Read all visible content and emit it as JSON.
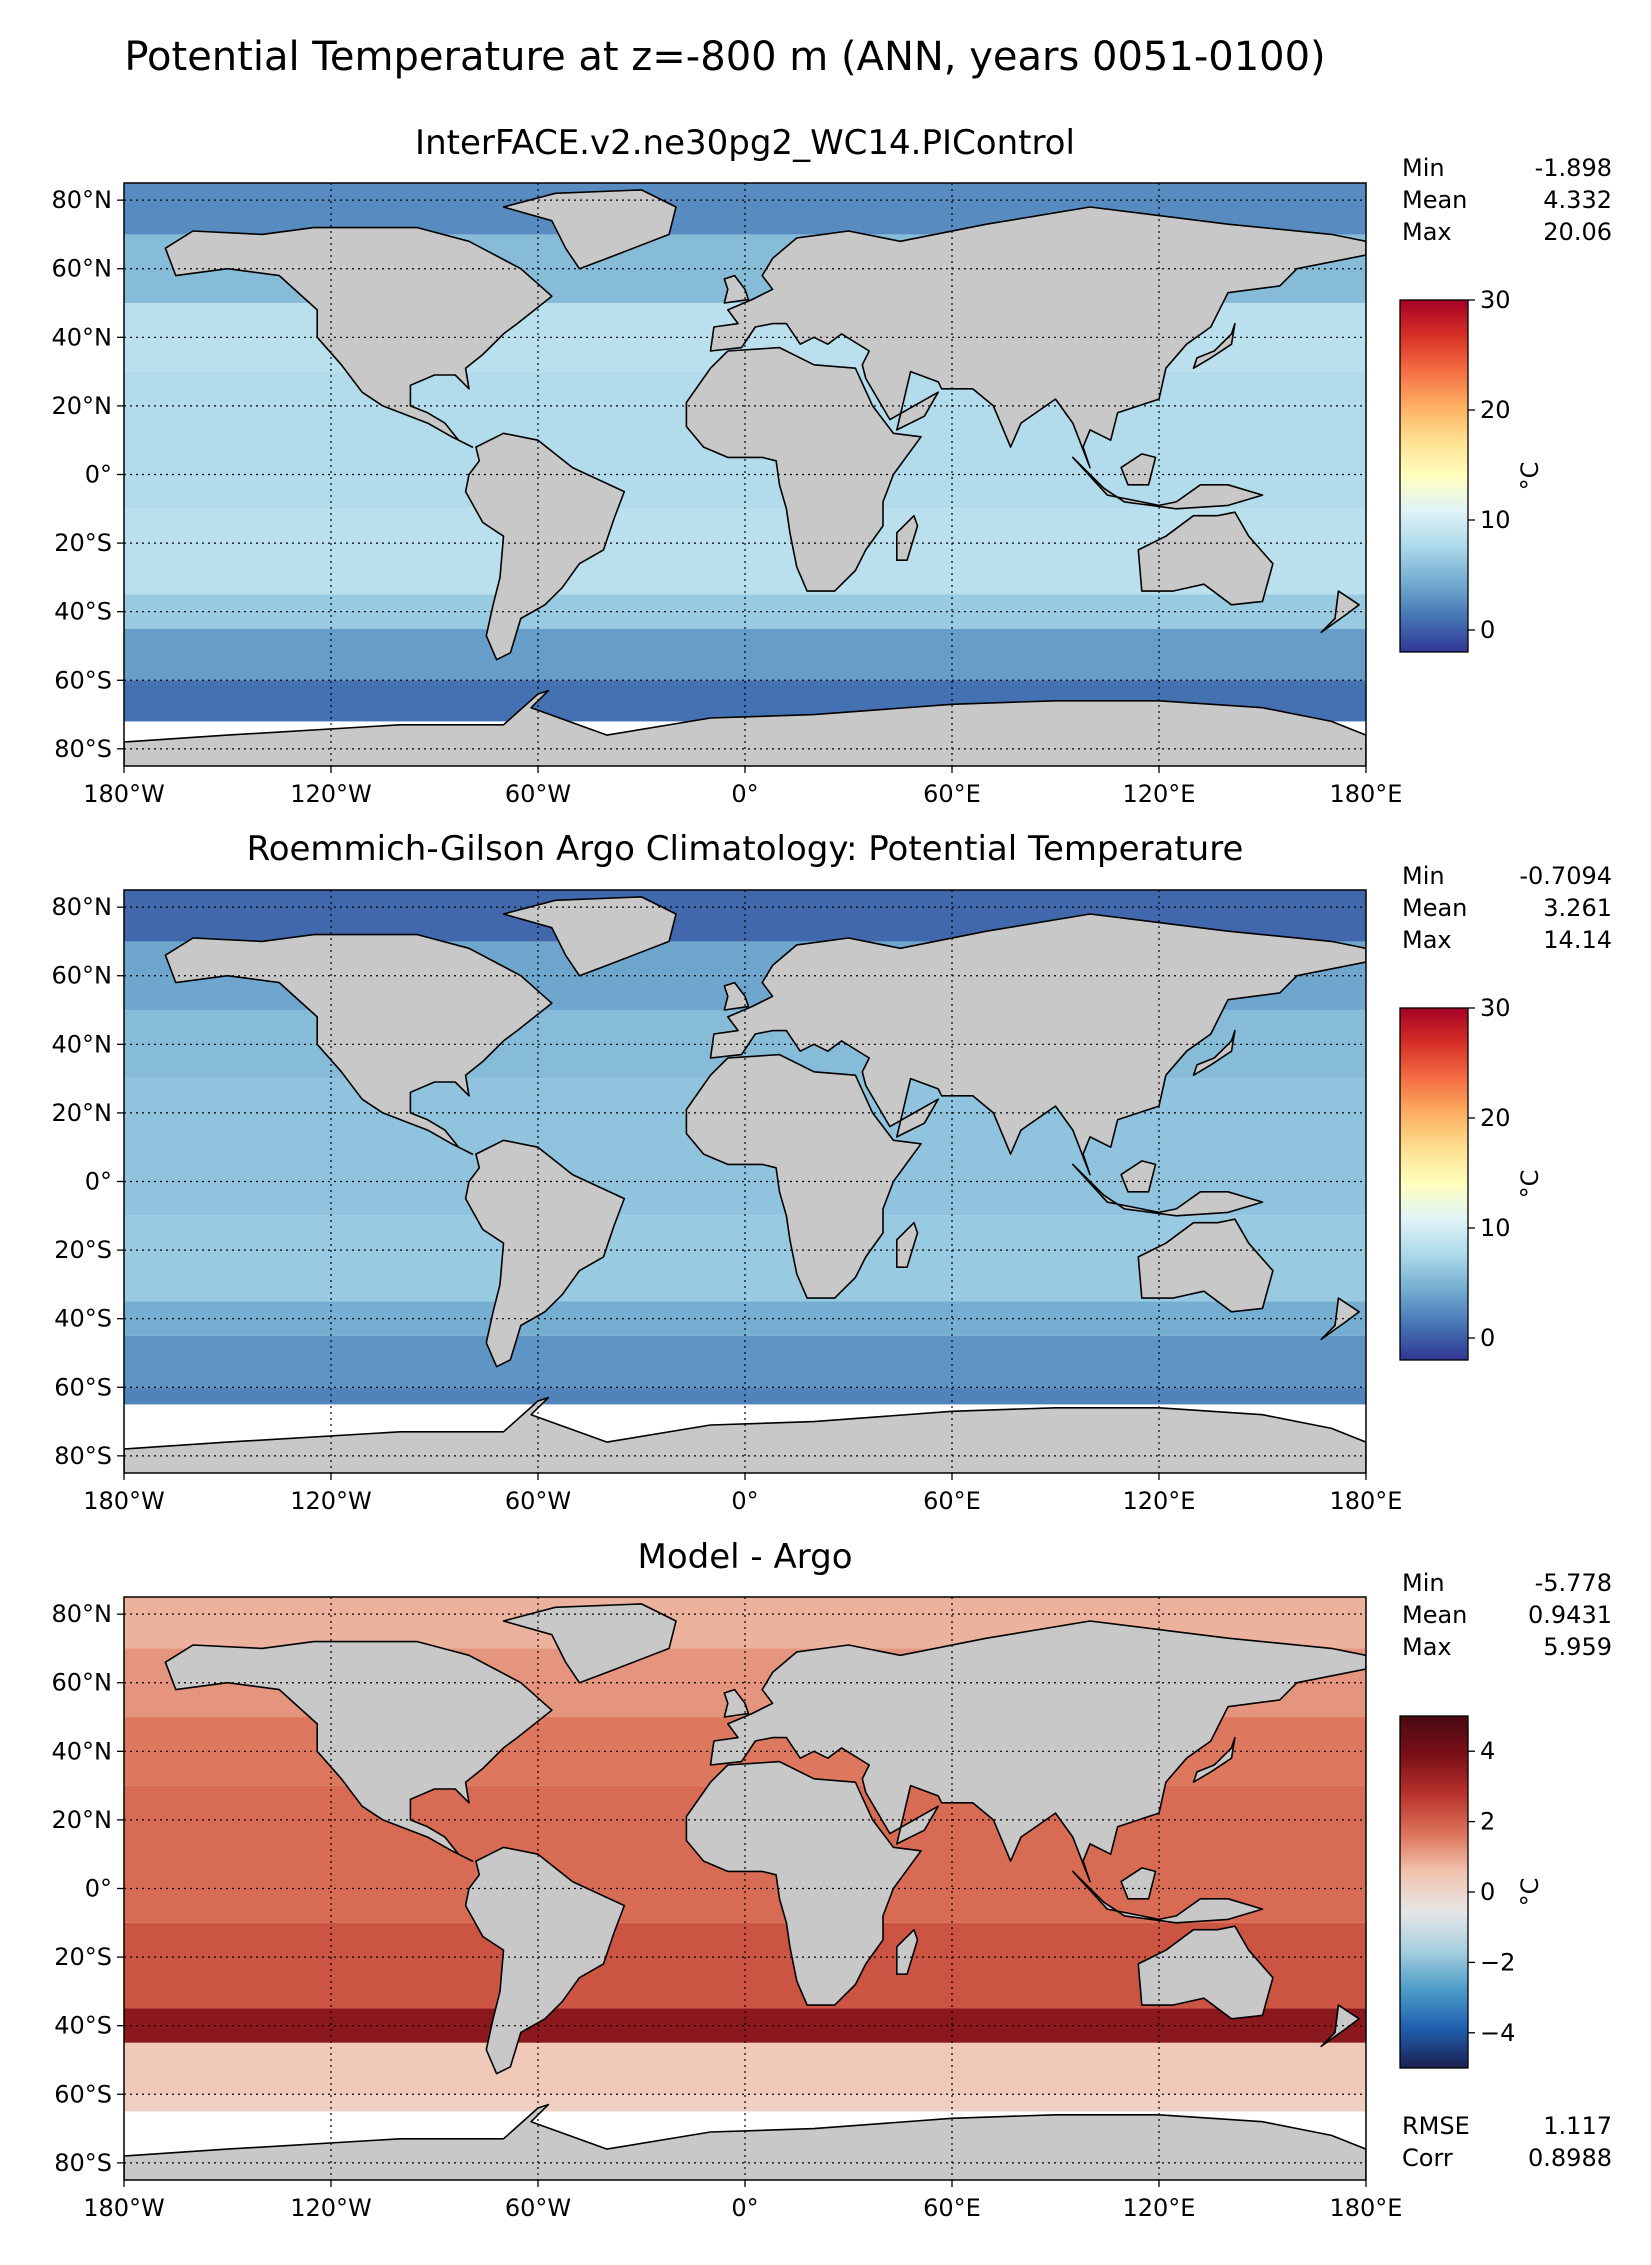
{
  "figure": {
    "suptitle": "Potential Temperature at z=-800 m (ANN, years 0051-0100)"
  },
  "colors": {
    "land": "#c8c8c8",
    "nodata": "#ffffff",
    "coast": "#000000",
    "temp_scale": [
      "#313695",
      "#4575b4",
      "#74add1",
      "#abd9e9",
      "#e0f3f8",
      "#ffffbf",
      "#fee090",
      "#fdae61",
      "#f46d43",
      "#d73027",
      "#a50026"
    ],
    "diff_scale": [
      "#1b1f50",
      "#1f5fae",
      "#4b9bc8",
      "#a7cfe0",
      "#e6e6e6",
      "#f2c4b0",
      "#dc7359",
      "#b8322c",
      "#7a0f18",
      "#4a0a12"
    ]
  },
  "chart_data": [
    {
      "type": "heatmap",
      "title": "InterFACE.v2.ne30pg2_WC14.PIControl",
      "stats": {
        "min_label": "Min",
        "min": "-1.898",
        "mean_label": "Mean",
        "mean": "4.332",
        "max_label": "Max",
        "max": "20.06"
      },
      "colorbar": {
        "label": "°C",
        "ticks": [
          "0",
          "10",
          "20",
          "30"
        ],
        "range": [
          -2,
          30
        ],
        "scale": "temp"
      },
      "xticks": [
        "180°W",
        "120°W",
        "60°W",
        "0°",
        "60°E",
        "120°E",
        "180°E"
      ],
      "yticks": [
        "80°N",
        "60°N",
        "40°N",
        "20°N",
        "0°",
        "20°S",
        "40°S",
        "60°S",
        "80°S"
      ],
      "xlim": [
        -180,
        180
      ],
      "ylim": [
        -85,
        85
      ],
      "grid": true,
      "ocean_bands": [
        {
          "lat_top": 85,
          "lat_bottom": 70,
          "value": 2.5
        },
        {
          "lat_top": 70,
          "lat_bottom": 50,
          "value": 5.5
        },
        {
          "lat_top": 50,
          "lat_bottom": 30,
          "value": 8.5
        },
        {
          "lat_top": 30,
          "lat_bottom": -10,
          "value": 8.0
        },
        {
          "lat_top": -10,
          "lat_bottom": -35,
          "value": 8.5
        },
        {
          "lat_top": -35,
          "lat_bottom": -45,
          "value": 6.5
        },
        {
          "lat_top": -45,
          "lat_bottom": -60,
          "value": 3.5
        },
        {
          "lat_top": -60,
          "lat_bottom": -72,
          "value": 1.0
        }
      ]
    },
    {
      "type": "heatmap",
      "title": "Roemmich-Gilson Argo Climatology: Potential Temperature",
      "stats": {
        "min_label": "Min",
        "min": "-0.7094",
        "mean_label": "Mean",
        "mean": "3.261",
        "max_label": "Max",
        "max": "14.14"
      },
      "colorbar": {
        "label": "°C",
        "ticks": [
          "0",
          "10",
          "20",
          "30"
        ],
        "range": [
          -2,
          30
        ],
        "scale": "temp"
      },
      "xticks": [
        "180°W",
        "120°W",
        "60°W",
        "0°",
        "60°E",
        "120°E",
        "180°E"
      ],
      "yticks": [
        "80°N",
        "60°N",
        "40°N",
        "20°N",
        "0°",
        "20°S",
        "40°S",
        "60°S",
        "80°S"
      ],
      "xlim": [
        -180,
        180
      ],
      "ylim": [
        -85,
        85
      ],
      "grid": true,
      "ocean_bands": [
        {
          "lat_top": 85,
          "lat_bottom": 70,
          "value": 0.5
        },
        {
          "lat_top": 70,
          "lat_bottom": 50,
          "value": 4.0
        },
        {
          "lat_top": 50,
          "lat_bottom": 30,
          "value": 5.5
        },
        {
          "lat_top": 30,
          "lat_bottom": -10,
          "value": 6.0
        },
        {
          "lat_top": -10,
          "lat_bottom": -35,
          "value": 6.5
        },
        {
          "lat_top": -35,
          "lat_bottom": -45,
          "value": 4.5
        },
        {
          "lat_top": -45,
          "lat_bottom": -60,
          "value": 3.0
        },
        {
          "lat_top": -60,
          "lat_bottom": -65,
          "value": 2.0
        }
      ]
    },
    {
      "type": "heatmap",
      "title": "Model - Argo",
      "stats": {
        "min_label": "Min",
        "min": "-5.778",
        "mean_label": "Mean",
        "mean": "0.9431",
        "max_label": "Max",
        "max": "5.959",
        "rmse_label": "RMSE",
        "rmse": "1.117",
        "corr_label": "Corr",
        "corr": "0.8988"
      },
      "colorbar": {
        "label": "°C",
        "ticks": [
          "4",
          "2",
          "0",
          "−2",
          "−4"
        ],
        "tick_values": [
          4,
          2,
          0,
          -2,
          -4
        ],
        "range": [
          -5,
          5
        ],
        "scale": "diff"
      },
      "xticks": [
        "180°W",
        "120°W",
        "60°W",
        "0°",
        "60°E",
        "120°E",
        "180°E"
      ],
      "yticks": [
        "80°N",
        "60°N",
        "40°N",
        "20°N",
        "0°",
        "20°S",
        "40°S",
        "60°S",
        "80°S"
      ],
      "xlim": [
        -180,
        180
      ],
      "ylim": [
        -85,
        85
      ],
      "grid": true,
      "ocean_bands": [
        {
          "lat_top": 85,
          "lat_bottom": 70,
          "value": 0.8
        },
        {
          "lat_top": 70,
          "lat_bottom": 50,
          "value": 1.2
        },
        {
          "lat_top": 50,
          "lat_bottom": 30,
          "value": 1.6
        },
        {
          "lat_top": 30,
          "lat_bottom": -10,
          "value": 1.8
        },
        {
          "lat_top": -10,
          "lat_bottom": -35,
          "value": 2.2
        },
        {
          "lat_top": -35,
          "lat_bottom": -45,
          "value": 3.6
        },
        {
          "lat_top": -45,
          "lat_bottom": -60,
          "value": 0.4
        },
        {
          "lat_top": -60,
          "lat_bottom": -65,
          "value": 0.2
        }
      ]
    }
  ]
}
